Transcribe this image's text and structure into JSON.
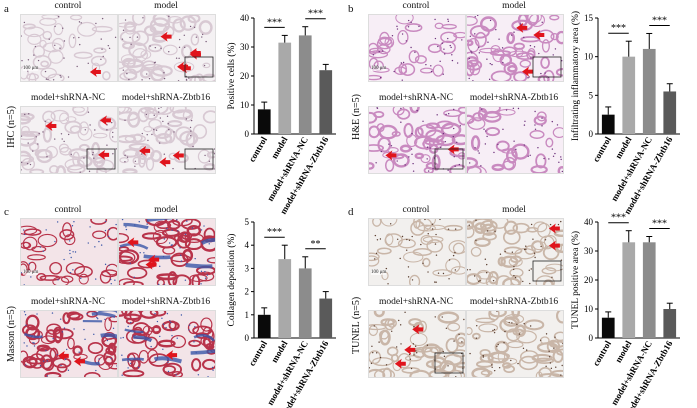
{
  "panels": [
    {
      "letter": "a",
      "side_label": "IHC (n=5)",
      "scale_text": "100 μm",
      "bg": "#f4f1f3",
      "tissue": "#d8c9d3",
      "dot": "#7a5d7a",
      "images": [
        {
          "title": "control",
          "arrows": 1
        },
        {
          "title": "model",
          "arrows": 5
        },
        {
          "title": "model+shRNA-NC",
          "arrows": 3
        },
        {
          "title": "model+shRNA-Zbtb16",
          "arrows": 3
        }
      ],
      "chart_data": {
        "type": "bar",
        "ylabel": "Positive cells (%)",
        "categories": [
          "control",
          "model",
          "model+shRNA-NC",
          "model+shRNA-Zbtb16"
        ],
        "values": [
          8.5,
          31.5,
          34,
          22
        ],
        "errors": [
          2.5,
          2.5,
          3,
          2
        ],
        "ylim": [
          0,
          40
        ],
        "yticks": [
          "0",
          "10",
          "20",
          "30",
          "40"
        ],
        "significance": [
          {
            "from": 0,
            "to": 1,
            "label": "***"
          },
          {
            "from": 2,
            "to": 3,
            "label": "***"
          }
        ]
      }
    },
    {
      "letter": "b",
      "side_label": "H&E (n=5)",
      "scale_text": "100 μm",
      "bg": "#f7eef6",
      "tissue": "#c98ac0",
      "dot": "#6b2f7a",
      "images": [
        {
          "title": "control",
          "arrows": 0
        },
        {
          "title": "model",
          "arrows": 3
        },
        {
          "title": "model+shRNA-NC",
          "arrows": 2
        },
        {
          "title": "model+shRNA-Zbtb16",
          "arrows": 0
        }
      ],
      "chart_data": {
        "type": "bar",
        "ylabel": "Infiltrating inflammatory area (%)",
        "categories": [
          "control",
          "model",
          "model+shRNA-NC",
          "model+shRNA-Zbtb16"
        ],
        "values": [
          2.5,
          10,
          11,
          5.5
        ],
        "errors": [
          1,
          2,
          2,
          1
        ],
        "ylim": [
          0,
          15
        ],
        "yticks": [
          "0",
          "5",
          "10",
          "15"
        ],
        "significance": [
          {
            "from": 0,
            "to": 1,
            "label": "***"
          },
          {
            "from": 2,
            "to": 3,
            "label": "***"
          }
        ]
      }
    },
    {
      "letter": "c",
      "side_label": "Masson (n=5)",
      "scale_text": "100 μm",
      "bg": "#f3e4e8",
      "tissue": "#b8334a",
      "dot": "#3a56a8",
      "images": [
        {
          "title": "control",
          "arrows": 0
        },
        {
          "title": "model",
          "arrows": 3
        },
        {
          "title": "model+shRNA-NC",
          "arrows": 2
        },
        {
          "title": "model+shRNA-Zbtb16",
          "arrows": 1
        }
      ],
      "chart_data": {
        "type": "bar",
        "ylabel": "Collagen deposition (%)",
        "categories": [
          "control",
          "model",
          "model+shRNA-NC",
          "model+shRNA-Zbtb16"
        ],
        "values": [
          1,
          3.4,
          3,
          1.7
        ],
        "errors": [
          0.3,
          0.6,
          0.5,
          0.3
        ],
        "ylim": [
          0,
          5
        ],
        "yticks": [
          "0",
          "1",
          "2",
          "3",
          "4",
          "5"
        ],
        "significance": [
          {
            "from": 0,
            "to": 1,
            "label": "***"
          },
          {
            "from": 2,
            "to": 3,
            "label": "**"
          }
        ]
      }
    },
    {
      "letter": "d",
      "side_label": "TUNEL (n=5)",
      "scale_text": "100 μm",
      "bg": "#f2f0ee",
      "tissue": "#c9b6a8",
      "dot": "#5a3e2f",
      "images": [
        {
          "title": "control",
          "arrows": 0
        },
        {
          "title": "model",
          "arrows": 2
        },
        {
          "title": "model+shRNA-NC",
          "arrows": 3
        },
        {
          "title": "model+shRNA-Zbtb16",
          "arrows": 0
        }
      ],
      "chart_data": {
        "type": "bar",
        "ylabel": "TUNEL positive area (%)",
        "categories": [
          "control",
          "model",
          "model+shRNA-NC",
          "model+shRNA-Zbtb16"
        ],
        "values": [
          7,
          33,
          33,
          10
        ],
        "errors": [
          2,
          4,
          2,
          2
        ],
        "ylim": [
          0,
          40
        ],
        "yticks": [
          "0",
          "10",
          "20",
          "30",
          "40"
        ],
        "significance": [
          {
            "from": 0,
            "to": 1,
            "label": "***"
          },
          {
            "from": 2,
            "to": 3,
            "label": "***"
          }
        ]
      }
    }
  ],
  "bar_colors": [
    "#0a0a0a",
    "#a9a9a9",
    "#8c8c8c",
    "#5a5a5a"
  ]
}
